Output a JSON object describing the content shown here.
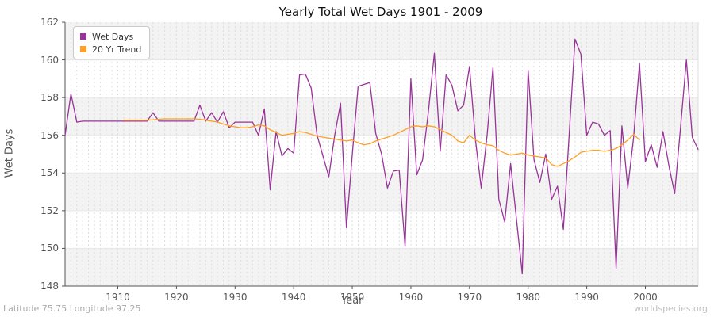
{
  "header": {
    "title": "Yearly Total Wet Days 1901 - 2009"
  },
  "axes": {
    "x_label": "Year",
    "y_label": "Wet Days",
    "x_ticks": [
      1910,
      1920,
      1930,
      1940,
      1950,
      1960,
      1970,
      1980,
      1990,
      2000
    ],
    "y_ticks": [
      148,
      150,
      152,
      154,
      156,
      158,
      160,
      162
    ]
  },
  "legend": {
    "items": [
      {
        "label": "Wet Days",
        "color": "#993399",
        "swatch": "purple-square"
      },
      {
        "label": "20 Yr Trend",
        "color": "#ffa023",
        "swatch": "orange-square"
      }
    ]
  },
  "footer": {
    "location": "Latitude 75.75 Longitude 97.25",
    "watermark": "worldspecies.org"
  },
  "colors": {
    "wet_days_line": "#993399",
    "trend_line": "#ffa023",
    "band_fill": "#f3f3f3",
    "h_grid": "#e7e7e7",
    "v_grid": "#dcdcdc",
    "spine": "#545454",
    "tick_text": "#555555"
  },
  "chart_data": {
    "type": "line",
    "title": "Yearly Total Wet Days 1901 - 2009",
    "xlabel": "Year",
    "ylabel": "Wet Days",
    "xlim": [
      1901,
      2009
    ],
    "ylim": [
      148,
      162
    ],
    "grid": "horizontal solid every 2 units, vertical dashed yearly, alternating gray bands",
    "legend_position": "top-left",
    "series": [
      {
        "name": "Wet Days",
        "color": "#993399",
        "x_start": 1901,
        "values": [
          156.0,
          158.2,
          156.7,
          156.75,
          156.75,
          156.75,
          156.75,
          156.75,
          156.75,
          156.75,
          156.75,
          156.75,
          156.75,
          156.75,
          156.75,
          157.2,
          156.75,
          156.75,
          156.75,
          156.75,
          156.75,
          156.75,
          156.75,
          157.6,
          156.75,
          157.2,
          156.7,
          157.25,
          156.4,
          156.7,
          156.7,
          156.7,
          156.7,
          156.0,
          157.4,
          153.1,
          156.2,
          154.9,
          155.3,
          155.05,
          159.2,
          159.25,
          158.5,
          156.0,
          154.9,
          153.8,
          156.0,
          157.7,
          151.1,
          155.0,
          158.6,
          158.7,
          158.8,
          156.1,
          155.0,
          153.2,
          154.1,
          154.15,
          150.1,
          159.0,
          153.9,
          154.7,
          157.3,
          160.35,
          155.15,
          159.2,
          158.65,
          157.3,
          157.6,
          159.65,
          155.8,
          153.2,
          156.0,
          159.6,
          152.6,
          151.4,
          154.5,
          151.6,
          148.65,
          159.45,
          154.7,
          153.5,
          155.0,
          152.6,
          153.3,
          151.0,
          156.0,
          161.1,
          160.3,
          156.0,
          156.7,
          156.6,
          156.0,
          156.25,
          148.95,
          156.5,
          153.2,
          155.9,
          159.8,
          154.6,
          155.5,
          154.3,
          156.2,
          154.4,
          152.9,
          156.4,
          160.0,
          155.9,
          155.25
        ]
      },
      {
        "name": "20 Yr Trend",
        "color": "#ffa023",
        "x_start": 1911,
        "values": [
          156.8,
          156.8,
          156.8,
          156.8,
          156.8,
          156.82,
          156.85,
          156.87,
          156.87,
          156.87,
          156.87,
          156.87,
          156.87,
          156.85,
          156.8,
          156.75,
          156.7,
          156.6,
          156.5,
          156.45,
          156.4,
          156.4,
          156.45,
          156.55,
          156.5,
          156.3,
          156.15,
          156.0,
          156.05,
          156.1,
          156.2,
          156.15,
          156.05,
          155.95,
          155.9,
          155.85,
          155.8,
          155.75,
          155.7,
          155.75,
          155.6,
          155.5,
          155.55,
          155.7,
          155.8,
          155.9,
          156.0,
          156.15,
          156.3,
          156.45,
          156.5,
          156.45,
          156.5,
          156.45,
          156.3,
          156.15,
          156.0,
          155.7,
          155.6,
          156.0,
          155.75,
          155.6,
          155.5,
          155.45,
          155.2,
          155.05,
          154.95,
          155.0,
          155.05,
          154.95,
          154.9,
          154.85,
          154.8,
          154.45,
          154.35,
          154.5,
          154.65,
          154.85,
          155.1,
          155.15,
          155.2,
          155.2,
          155.15,
          155.2,
          155.3,
          155.5,
          155.75,
          156.05,
          155.75
        ]
      }
    ]
  }
}
